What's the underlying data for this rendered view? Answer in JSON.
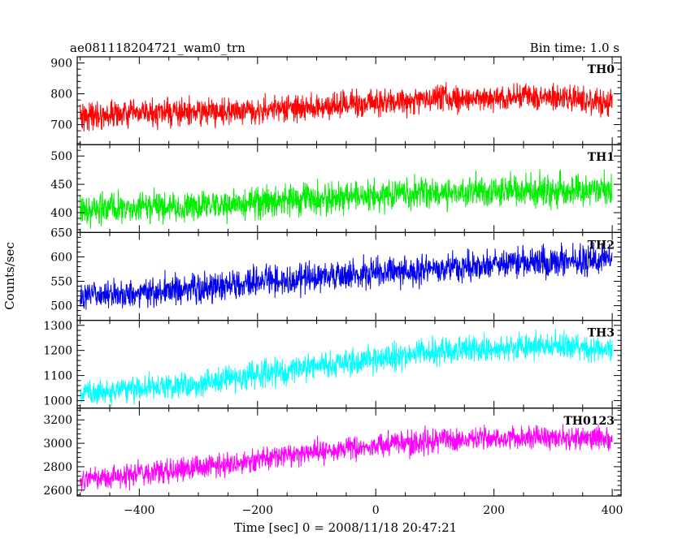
{
  "header": {
    "title_left": "ae081118204721_wam0_trn",
    "title_right": "Bin time: 1.0 s"
  },
  "chart_data": {
    "type": "line",
    "xlabel": "Time [sec] 0 = 2008/11/18 20:47:21",
    "ylabel": "Counts/sec",
    "xlim": [
      -505,
      415
    ],
    "xticks": [
      -400,
      -200,
      0,
      200,
      400
    ],
    "x_range": [
      -500,
      400
    ],
    "bin_time_s": 1.0,
    "panels": [
      {
        "name": "TH0",
        "color": "#ff0000",
        "ylim": [
          635,
          920
        ],
        "yticks": [
          700,
          800,
          900
        ],
        "trend": [
          [
            -500,
            730
          ],
          [
            -300,
            740
          ],
          [
            -100,
            755
          ],
          [
            100,
            785
          ],
          [
            300,
            790
          ],
          [
            400,
            775
          ]
        ],
        "noise": 32
      },
      {
        "name": "TH1",
        "color": "#00ee00",
        "ylim": [
          365,
          520
        ],
        "yticks": [
          400,
          450,
          500
        ],
        "trend": [
          [
            -500,
            405
          ],
          [
            -300,
            410
          ],
          [
            -100,
            425
          ],
          [
            100,
            435
          ],
          [
            300,
            440
          ],
          [
            400,
            440
          ]
        ],
        "noise": 20
      },
      {
        "name": "TH2",
        "color": "#0000ee",
        "ylim": [
          470,
          650
        ],
        "yticks": [
          500,
          550,
          600,
          650
        ],
        "trend": [
          [
            -500,
            520
          ],
          [
            -300,
            535
          ],
          [
            -100,
            560
          ],
          [
            100,
            575
          ],
          [
            300,
            590
          ],
          [
            400,
            595
          ]
        ],
        "noise": 22
      },
      {
        "name": "TH3",
        "color": "#00ffff",
        "ylim": [
          970,
          1320
        ],
        "yticks": [
          1000,
          1100,
          1200,
          1300
        ],
        "trend": [
          [
            -500,
            1025
          ],
          [
            -300,
            1070
          ],
          [
            -100,
            1140
          ],
          [
            100,
            1195
          ],
          [
            300,
            1220
          ],
          [
            400,
            1205
          ]
        ],
        "noise": 38
      },
      {
        "name": "TH0123",
        "color": "#ff00ff",
        "ylim": [
          2550,
          3300
        ],
        "yticks": [
          2600,
          2800,
          3000,
          3200
        ],
        "trend": [
          [
            -500,
            2690
          ],
          [
            -300,
            2790
          ],
          [
            -100,
            2930
          ],
          [
            100,
            3020
          ],
          [
            300,
            3060
          ],
          [
            400,
            3030
          ]
        ],
        "noise": 75
      }
    ]
  }
}
